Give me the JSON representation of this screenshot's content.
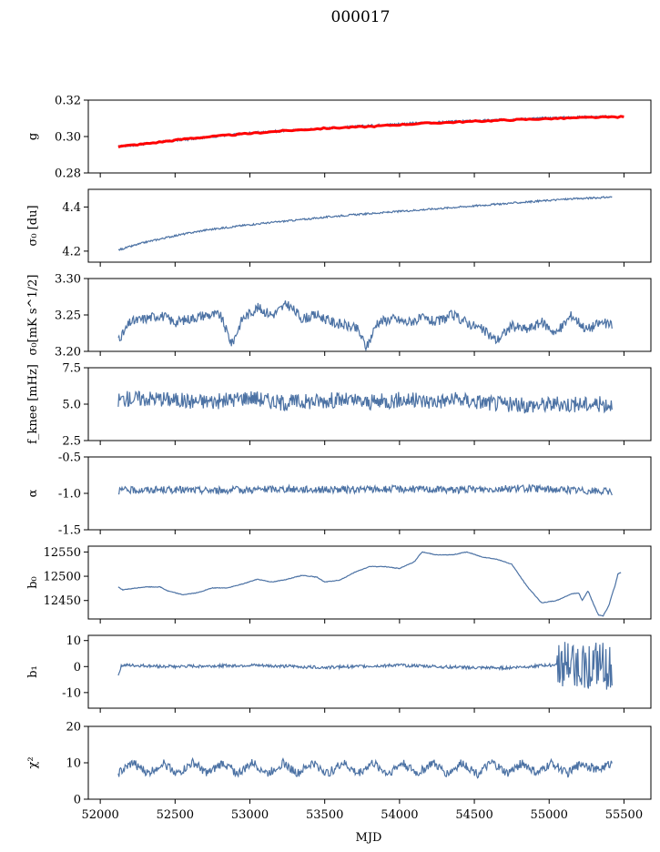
{
  "figure": {
    "title": "000017"
  },
  "colors": {
    "series": "#4c72a4",
    "model": "#ff0000",
    "axis": "#000000"
  },
  "chart_data": {
    "type": "line",
    "title": "000017",
    "xlabel": "MJD",
    "xlim": [
      51920,
      55680
    ],
    "xticks": [
      52000,
      52500,
      53000,
      53500,
      54000,
      54500,
      55000,
      55500
    ],
    "data_range": [
      52120,
      55420
    ],
    "panels": [
      {
        "ylabel": "g",
        "ylim": [
          0.28,
          0.32
        ],
        "yticks": [
          "0.28",
          "0.30",
          "0.32"
        ],
        "series": [
          {
            "color": "#4c72a4",
            "points": [
              [
                52120,
                0.2945
              ],
              [
                52200,
                0.295
              ],
              [
                52400,
                0.297
              ],
              [
                52700,
                0.2995
              ],
              [
                53000,
                0.302
              ],
              [
                53300,
                0.3035
              ],
              [
                53600,
                0.305
              ],
              [
                53800,
                0.306
              ],
              [
                54000,
                0.307
              ],
              [
                54300,
                0.308
              ],
              [
                54600,
                0.309
              ],
              [
                54900,
                0.31
              ],
              [
                55100,
                0.3105
              ],
              [
                55420,
                0.311
              ]
            ]
          },
          {
            "color": "#ff0000",
            "points": [
              [
                52120,
                0.2945
              ],
              [
                52300,
                0.296
              ],
              [
                52600,
                0.299
              ],
              [
                52900,
                0.301
              ],
              [
                53200,
                0.303
              ],
              [
                53500,
                0.3045
              ],
              [
                53800,
                0.3055
              ],
              [
                54100,
                0.307
              ],
              [
                54400,
                0.308
              ],
              [
                54700,
                0.309
              ],
              [
                55000,
                0.3098
              ],
              [
                55300,
                0.3105
              ],
              [
                55500,
                0.3108
              ]
            ]
          }
        ]
      },
      {
        "ylabel": "σ₀ [du]",
        "ylim": [
          4.15,
          4.48
        ],
        "yticks": [
          "4.2",
          "4.4"
        ],
        "series": [
          {
            "color": "#4c72a4",
            "points": [
              [
                52120,
                4.205
              ],
              [
                52300,
                4.24
              ],
              [
                52500,
                4.27
              ],
              [
                52700,
                4.295
              ],
              [
                53000,
                4.32
              ],
              [
                53300,
                4.34
              ],
              [
                53600,
                4.36
              ],
              [
                53900,
                4.375
              ],
              [
                54200,
                4.39
              ],
              [
                54500,
                4.405
              ],
              [
                54800,
                4.42
              ],
              [
                55100,
                4.435
              ],
              [
                55420,
                4.445
              ]
            ]
          }
        ]
      },
      {
        "ylabel": "σ₀[mK s^1/2]",
        "ylim": [
          3.2,
          3.3
        ],
        "yticks": [
          "3.20",
          "3.25",
          "3.30"
        ],
        "series": [
          {
            "color": "#4c72a4",
            "points": [
              [
                52120,
                3.22
              ],
              [
                52150,
                3.223
              ],
              [
                52200,
                3.24
              ],
              [
                52300,
                3.245
              ],
              [
                52400,
                3.25
              ],
              [
                52500,
                3.24
              ],
              [
                52600,
                3.245
              ],
              [
                52700,
                3.25
              ],
              [
                52800,
                3.25
              ],
              [
                52880,
                3.21
              ],
              [
                52950,
                3.245
              ],
              [
                53050,
                3.26
              ],
              [
                53150,
                3.25
              ],
              [
                53250,
                3.265
              ],
              [
                53350,
                3.245
              ],
              [
                53450,
                3.25
              ],
              [
                53550,
                3.24
              ],
              [
                53650,
                3.235
              ],
              [
                53720,
                3.23
              ],
              [
                53780,
                3.205
              ],
              [
                53850,
                3.24
              ],
              [
                53950,
                3.245
              ],
              [
                54050,
                3.24
              ],
              [
                54150,
                3.245
              ],
              [
                54250,
                3.24
              ],
              [
                54350,
                3.25
              ],
              [
                54450,
                3.24
              ],
              [
                54550,
                3.23
              ],
              [
                54650,
                3.215
              ],
              [
                54750,
                3.235
              ],
              [
                54850,
                3.23
              ],
              [
                54950,
                3.24
              ],
              [
                55050,
                3.225
              ],
              [
                55150,
                3.25
              ],
              [
                55250,
                3.23
              ],
              [
                55350,
                3.24
              ],
              [
                55420,
                3.235
              ]
            ]
          }
        ]
      },
      {
        "ylabel": "f_knee [mHz]",
        "ylim": [
          2.5,
          7.5
        ],
        "yticks": [
          "2.5",
          "5.0",
          "7.5"
        ],
        "series": [
          {
            "color": "#4c72a4",
            "points": [
              [
                52120,
                5.3
              ],
              [
                52200,
                5.4
              ],
              [
                52400,
                5.4
              ],
              [
                52600,
                5.2
              ],
              [
                52800,
                5.2
              ],
              [
                53000,
                5.5
              ],
              [
                53200,
                5.1
              ],
              [
                53400,
                5.2
              ],
              [
                53600,
                5.3
              ],
              [
                53800,
                5.1
              ],
              [
                54000,
                5.3
              ],
              [
                54200,
                5.2
              ],
              [
                54400,
                5.3
              ],
              [
                54600,
                5.1
              ],
              [
                54800,
                4.9
              ],
              [
                55000,
                5.0
              ],
              [
                55200,
                5.0
              ],
              [
                55420,
                5.0
              ]
            ]
          }
        ]
      },
      {
        "ylabel": "α",
        "ylim": [
          -1.5,
          -0.5
        ],
        "yticks": [
          "-1.5",
          "-1.0",
          "-0.5"
        ],
        "series": [
          {
            "color": "#4c72a4",
            "points": [
              [
                52120,
                -0.96
              ],
              [
                52400,
                -0.95
              ],
              [
                52800,
                -0.96
              ],
              [
                53200,
                -0.94
              ],
              [
                53600,
                -0.95
              ],
              [
                54000,
                -0.94
              ],
              [
                54400,
                -0.95
              ],
              [
                54800,
                -0.93
              ],
              [
                55100,
                -0.95
              ],
              [
                55420,
                -0.98
              ]
            ]
          }
        ]
      },
      {
        "ylabel": "b₀",
        "ylim": [
          12412,
          12562
        ],
        "yticks": [
          "12450",
          "12500",
          "12550"
        ],
        "series": [
          {
            "color": "#4c72a4",
            "points": [
              [
                52120,
                12478
              ],
              [
                52150,
                12472
              ],
              [
                52200,
                12474
              ],
              [
                52300,
                12478
              ],
              [
                52400,
                12478
              ],
              [
                52450,
                12470
              ],
              [
                52550,
                12462
              ],
              [
                52650,
                12466
              ],
              [
                52750,
                12476
              ],
              [
                52850,
                12476
              ],
              [
                52950,
                12484
              ],
              [
                53050,
                12494
              ],
              [
                53150,
                12488
              ],
              [
                53250,
                12494
              ],
              [
                53350,
                12502
              ],
              [
                53450,
                12498
              ],
              [
                53500,
                12488
              ],
              [
                53600,
                12492
              ],
              [
                53700,
                12508
              ],
              [
                53800,
                12520
              ],
              [
                53900,
                12520
              ],
              [
                54000,
                12516
              ],
              [
                54100,
                12530
              ],
              [
                54150,
                12550
              ],
              [
                54250,
                12544
              ],
              [
                54350,
                12544
              ],
              [
                54450,
                12550
              ],
              [
                54550,
                12540
              ],
              [
                54650,
                12535
              ],
              [
                54750,
                12525
              ],
              [
                54850,
                12480
              ],
              [
                54950,
                12445
              ],
              [
                55050,
                12450
              ],
              [
                55150,
                12464
              ],
              [
                55200,
                12465
              ],
              [
                55220,
                12450
              ],
              [
                55260,
                12470
              ],
              [
                55300,
                12440
              ],
              [
                55330,
                12420
              ],
              [
                55360,
                12418
              ],
              [
                55400,
                12440
              ],
              [
                55420,
                12462
              ],
              [
                55440,
                12480
              ],
              [
                55460,
                12505
              ],
              [
                55480,
                12508
              ]
            ]
          }
        ]
      },
      {
        "ylabel": "b₁",
        "ylim": [
          -16,
          12
        ],
        "yticks": [
          "-10",
          "0",
          "10"
        ],
        "series": [
          {
            "color": "#4c72a4",
            "points": [
              [
                52120,
                -3.5
              ],
              [
                52140,
                0.5
              ],
              [
                52500,
                0.0
              ],
              [
                53000,
                0.5
              ],
              [
                53500,
                -0.3
              ],
              [
                54000,
                0.5
              ],
              [
                54500,
                -0.5
              ],
              [
                54700,
                -0.5
              ],
              [
                55000,
                0.5
              ],
              [
                55100,
                1.0
              ],
              [
                55200,
                0.5
              ],
              [
                55300,
                0.0
              ],
              [
                55420,
                0.3
              ]
            ]
          }
        ]
      },
      {
        "ylabel": "χ²",
        "ylim": [
          0,
          20
        ],
        "yticks": [
          "0",
          "10",
          "20"
        ],
        "series": [
          {
            "color": "#4c72a4",
            "points": [
              [
                52120,
                7
              ],
              [
                52220,
                10
              ],
              [
                52320,
                7
              ],
              [
                52420,
                10
              ],
              [
                52520,
                7
              ],
              [
                52620,
                10
              ],
              [
                52720,
                7
              ],
              [
                52820,
                10
              ],
              [
                52920,
                7
              ],
              [
                53020,
                10
              ],
              [
                53120,
                7
              ],
              [
                53220,
                10
              ],
              [
                53320,
                7
              ],
              [
                53420,
                10
              ],
              [
                53520,
                7
              ],
              [
                53620,
                10
              ],
              [
                53720,
                7
              ],
              [
                53820,
                10
              ],
              [
                53920,
                7
              ],
              [
                54020,
                10
              ],
              [
                54120,
                7
              ],
              [
                54220,
                10
              ],
              [
                54320,
                7
              ],
              [
                54420,
                10
              ],
              [
                54520,
                7
              ],
              [
                54620,
                10
              ],
              [
                54720,
                7
              ],
              [
                54820,
                10
              ],
              [
                54920,
                7
              ],
              [
                55020,
                10
              ],
              [
                55120,
                7
              ],
              [
                55220,
                10
              ],
              [
                55320,
                8
              ],
              [
                55420,
                10
              ]
            ]
          }
        ]
      }
    ]
  }
}
